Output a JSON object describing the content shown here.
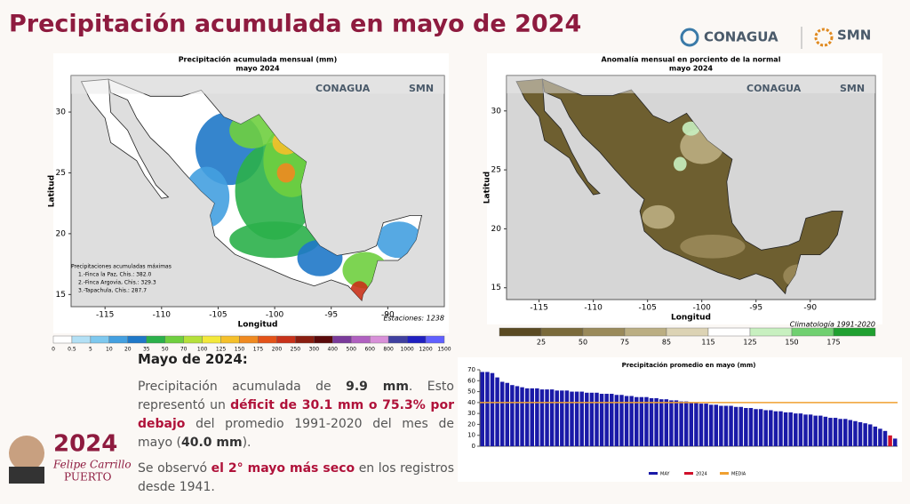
{
  "header": {
    "title": "Precipitación acumulada en mayo de 2024",
    "logos": [
      "CONAGUA",
      "SMN"
    ]
  },
  "maps": [
    {
      "title": "Precipitación acumulada mensual (mm)",
      "subtitle": "mayo 2024",
      "xlabel": "Longitud",
      "ylabel": "Latitud",
      "xlim": [
        -118,
        -85
      ],
      "ylim": [
        14,
        33
      ],
      "xticks": [
        -115,
        -110,
        -105,
        -100,
        -95,
        -90
      ],
      "yticks": [
        15,
        20,
        25,
        30
      ],
      "notes": [
        "Precipitaciones acumuladas máximas",
        "1.-Finca la Paz, Chis.: 382.0",
        "2.-Finca Argovia, Chis.: 329.3",
        "3.-Tapachula, Chis.: 287.7"
      ],
      "footer": "Estaciones: 1238",
      "scale": {
        "labels": [
          0,
          0.5,
          5,
          10,
          20,
          35,
          50,
          70,
          100,
          125,
          150,
          175,
          200,
          250,
          300,
          400,
          500,
          600,
          800,
          1000,
          1200,
          1500
        ],
        "colors": [
          "#ffffff",
          "#b3e0f5",
          "#7ec8ee",
          "#44a0e0",
          "#1f78c8",
          "#2bb04a",
          "#6fcf3f",
          "#b5e03a",
          "#f3e83a",
          "#f5c02a",
          "#f08a20",
          "#e45318",
          "#c8321a",
          "#8a1e10",
          "#5a0a0a",
          "#7a3a9a",
          "#b060c0",
          "#d890d8",
          "#4040a0",
          "#2020c0",
          "#6060ff"
        ]
      }
    },
    {
      "title": "Anomalía mensual en porciento de la normal",
      "subtitle": "mayo 2024",
      "xlabel": "Longitud",
      "ylabel": "Latitud",
      "xlim": [
        -118,
        -84
      ],
      "ylim": [
        14,
        33
      ],
      "xticks": [
        -115,
        -110,
        -105,
        -100,
        -95,
        -90
      ],
      "yticks": [
        15,
        20,
        25,
        30
      ],
      "footer": "Climatología 1991-2020",
      "scale": {
        "labels": [
          25,
          50,
          75,
          85,
          115,
          125,
          150,
          175
        ],
        "colors": [
          "#5a4a22",
          "#7a6a3a",
          "#9a8a5a",
          "#bbae82",
          "#dcd3b4",
          "#ffffff",
          "#c8f0c0",
          "#70d070",
          "#20a030"
        ]
      }
    }
  ],
  "text": {
    "heading": "Mayo de 2024:",
    "p1": [
      {
        "text": "Precipitación acumulada de ",
        "style": "normal"
      },
      {
        "text": "9.9 mm",
        "style": "bold"
      },
      {
        "text": ". Esto representó un ",
        "style": "normal"
      },
      {
        "text": "déficit de 30.1 mm o 75.3% por debajo",
        "style": "red"
      },
      {
        "text": " del promedio 1991-2020 del mes de mayo (",
        "style": "normal"
      },
      {
        "text": "40.0 mm",
        "style": "bold"
      },
      {
        "text": ").",
        "style": "normal"
      }
    ],
    "p2": [
      {
        "text": "Se observó ",
        "style": "normal"
      },
      {
        "text": "el 2° mayo más seco",
        "style": "red"
      },
      {
        "text": " en los registros desde 1941.",
        "style": "normal"
      }
    ]
  },
  "footer_logo": {
    "year": "2024",
    "line1": "Felipe Carrillo",
    "line2": "PUERTO"
  },
  "chart_data": {
    "type": "bar",
    "title": "Precipitación promedio en mayo (mm)",
    "ylim": [
      0,
      70
    ],
    "yticks": [
      0,
      10,
      20,
      30,
      40,
      50,
      60,
      70
    ],
    "series": [
      {
        "name": "MAY",
        "color": "#1a1aa8",
        "values": [
          68,
          68,
          67,
          63,
          59,
          58,
          56,
          55,
          54,
          53,
          53,
          53,
          52,
          52,
          52,
          51,
          51,
          51,
          50,
          50,
          50,
          49,
          49,
          49,
          48,
          48,
          48,
          47,
          47,
          46,
          46,
          45,
          45,
          45,
          44,
          44,
          43,
          43,
          42,
          42,
          41,
          41,
          40,
          40,
          39,
          39,
          38,
          38,
          37,
          37,
          37,
          36,
          36,
          35,
          35,
          34,
          34,
          33,
          33,
          32,
          32,
          31,
          31,
          30,
          30,
          29,
          29,
          28,
          28,
          27,
          26,
          26,
          25,
          25,
          24,
          23,
          22,
          21,
          20,
          18,
          16,
          14,
          null,
          7
        ]
      },
      {
        "name": "2024",
        "color": "#d0102a",
        "values": [
          null,
          null,
          null,
          null,
          null,
          null,
          null,
          null,
          null,
          null,
          null,
          null,
          null,
          null,
          null,
          null,
          null,
          null,
          null,
          null,
          null,
          null,
          null,
          null,
          null,
          null,
          null,
          null,
          null,
          null,
          null,
          null,
          null,
          null,
          null,
          null,
          null,
          null,
          null,
          null,
          null,
          null,
          null,
          null,
          null,
          null,
          null,
          null,
          null,
          null,
          null,
          null,
          null,
          null,
          null,
          null,
          null,
          null,
          null,
          null,
          null,
          null,
          null,
          null,
          null,
          null,
          null,
          null,
          null,
          null,
          null,
          null,
          null,
          null,
          null,
          null,
          null,
          null,
          null,
          null,
          null,
          null,
          9.9,
          null
        ]
      }
    ],
    "reference_line": {
      "name": "MEDIA",
      "value": 40,
      "color": "#f0a030"
    }
  }
}
